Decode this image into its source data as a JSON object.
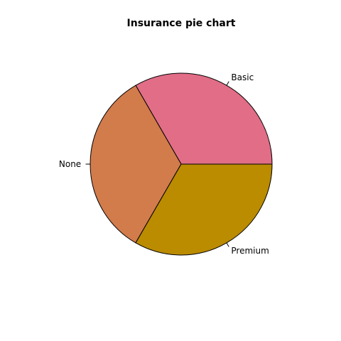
{
  "chart_data": {
    "type": "pie",
    "title": "Insurance pie chart",
    "labels": [
      "Basic",
      "None",
      "Premium"
    ],
    "values": [
      1,
      1,
      1
    ],
    "colors": [
      "#E16D87",
      "#D27B4B",
      "#BB8B00"
    ],
    "start_angle_deg": 0,
    "direction": "counterclockwise",
    "legend": "none"
  }
}
